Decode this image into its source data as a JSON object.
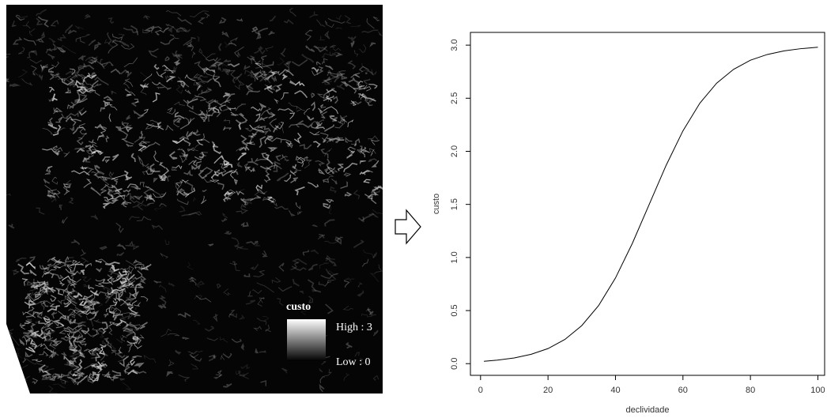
{
  "map": {
    "legend": {
      "title": "custo",
      "high": "High : 3",
      "low": "Low : 0"
    }
  },
  "chart_data": {
    "type": "line",
    "x_label": "declividade",
    "y_label": "custo",
    "x": [
      1,
      5,
      10,
      15,
      20,
      25,
      30,
      35,
      40,
      45,
      50,
      55,
      60,
      65,
      70,
      75,
      80,
      85,
      90,
      95,
      100
    ],
    "values": [
      0.022,
      0.033,
      0.054,
      0.088,
      0.142,
      0.228,
      0.358,
      0.547,
      0.807,
      1.133,
      1.5,
      1.867,
      2.193,
      2.453,
      2.642,
      2.772,
      2.858,
      2.912,
      2.946,
      2.967,
      2.98
    ],
    "color": "#000000",
    "xlim": [
      -3,
      102
    ],
    "xticks": [
      0,
      20,
      40,
      60,
      80,
      100
    ],
    "ylim": [
      -0.11,
      3.12
    ],
    "yticks": [
      {
        "value": 0,
        "label": "0.0"
      },
      0.5,
      {
        "value": 1,
        "label": "1.0"
      },
      1.5,
      {
        "value": 2,
        "label": "2.0"
      },
      2.5,
      {
        "value": 3,
        "label": "3.0"
      }
    ]
  }
}
